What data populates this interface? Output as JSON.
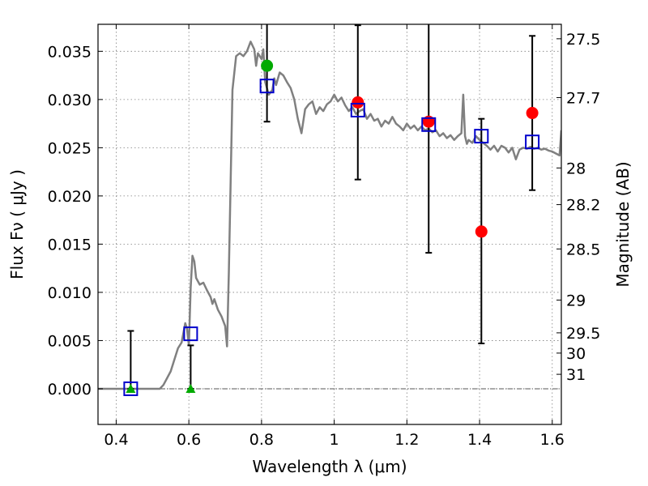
{
  "chart_data": {
    "type": "scatter",
    "xlabel": "Wavelength  λ (μm)",
    "ylabel": "Flux  Fν  ( μJy )",
    "y2label": "Magnitude (AB)",
    "xlim": [
      0.35,
      1.625
    ],
    "ylim": [
      -0.0037,
      0.0378
    ],
    "grid": true,
    "x_ticks": [
      0.4,
      0.6,
      0.8,
      1.0,
      1.2,
      1.4,
      1.6
    ],
    "x_tick_labels": [
      "0.4",
      "0.6",
      "0.8",
      "1",
      "1.2",
      "1.4",
      "1.6"
    ],
    "y_ticks": [
      0.0,
      0.005,
      0.01,
      0.015,
      0.02,
      0.025,
      0.03,
      0.035
    ],
    "y_tick_labels": [
      "0.000",
      "0.005",
      "0.010",
      "0.015",
      "0.020",
      "0.025",
      "0.030",
      "0.035"
    ],
    "y2_ticks": [
      {
        "label": "27.5",
        "flux": 0.0363
      },
      {
        "label": "27.7",
        "flux": 0.0302
      },
      {
        "label": "28",
        "flux": 0.0229
      },
      {
        "label": "28.2",
        "flux": 0.0191
      },
      {
        "label": "28.5",
        "flux": 0.0145
      },
      {
        "label": "29",
        "flux": 0.0092
      },
      {
        "label": "29.5",
        "flux": 0.0058
      },
      {
        "label": "30",
        "flux": 0.0037
      },
      {
        "label": "31",
        "flux": 0.0015
      }
    ],
    "colors": {
      "model": "#808080",
      "model_photometry": "#0000cc",
      "detection": "#ff0000",
      "green": "#00aa00",
      "errorbar": "#000000",
      "zero_line": "#555555",
      "grid": "#7f7f7f"
    },
    "model_sed": {
      "x": [
        0.35,
        0.44,
        0.48,
        0.52,
        0.53,
        0.55,
        0.57,
        0.58,
        0.59,
        0.595,
        0.6,
        0.605,
        0.61,
        0.615,
        0.62,
        0.63,
        0.64,
        0.65,
        0.66,
        0.665,
        0.67,
        0.68,
        0.69,
        0.7,
        0.705,
        0.71,
        0.72,
        0.73,
        0.74,
        0.75,
        0.76,
        0.77,
        0.78,
        0.785,
        0.79,
        0.8,
        0.805,
        0.81,
        0.82,
        0.83,
        0.835,
        0.84,
        0.85,
        0.86,
        0.87,
        0.88,
        0.89,
        0.9,
        0.91,
        0.92,
        0.93,
        0.94,
        0.95,
        0.96,
        0.97,
        0.98,
        0.99,
        1.0,
        1.01,
        1.02,
        1.03,
        1.04,
        1.05,
        1.06,
        1.07,
        1.08,
        1.09,
        1.1,
        1.11,
        1.12,
        1.13,
        1.14,
        1.15,
        1.16,
        1.17,
        1.18,
        1.19,
        1.2,
        1.21,
        1.22,
        1.23,
        1.24,
        1.25,
        1.26,
        1.27,
        1.28,
        1.29,
        1.3,
        1.31,
        1.32,
        1.33,
        1.34,
        1.35,
        1.355,
        1.36,
        1.365,
        1.37,
        1.38,
        1.39,
        1.4,
        1.41,
        1.42,
        1.43,
        1.44,
        1.45,
        1.46,
        1.47,
        1.48,
        1.49,
        1.5,
        1.51,
        1.52,
        1.53,
        1.54,
        1.55,
        1.56,
        1.57,
        1.58,
        1.59,
        1.6,
        1.61,
        1.62,
        1.625
      ],
      "y": [
        0.0,
        0.0,
        0.0,
        0.0,
        0.0004,
        0.0018,
        0.0042,
        0.0048,
        0.0068,
        0.0062,
        0.0045,
        0.0105,
        0.0138,
        0.0132,
        0.0115,
        0.0108,
        0.011,
        0.0102,
        0.0095,
        0.0088,
        0.0093,
        0.0082,
        0.0075,
        0.0065,
        0.0044,
        0.012,
        0.031,
        0.0345,
        0.0348,
        0.0345,
        0.035,
        0.036,
        0.0352,
        0.0335,
        0.0348,
        0.0342,
        0.0352,
        0.0318,
        0.0305,
        0.031,
        0.0322,
        0.0315,
        0.0328,
        0.0325,
        0.0318,
        0.0312,
        0.03,
        0.028,
        0.0265,
        0.029,
        0.0295,
        0.0298,
        0.0285,
        0.0292,
        0.0288,
        0.0295,
        0.0298,
        0.0305,
        0.0298,
        0.0302,
        0.0294,
        0.0288,
        0.0292,
        0.0285,
        0.0288,
        0.029,
        0.028,
        0.0285,
        0.0278,
        0.028,
        0.0272,
        0.0278,
        0.0275,
        0.0282,
        0.0275,
        0.0272,
        0.0268,
        0.0275,
        0.027,
        0.0273,
        0.0268,
        0.0272,
        0.0268,
        0.027,
        0.0266,
        0.0268,
        0.0262,
        0.0265,
        0.026,
        0.0263,
        0.0258,
        0.0262,
        0.0265,
        0.0305,
        0.0262,
        0.0254,
        0.0258,
        0.0255,
        0.0262,
        0.0258,
        0.0255,
        0.0252,
        0.0248,
        0.0252,
        0.0246,
        0.0252,
        0.025,
        0.0245,
        0.025,
        0.0238,
        0.0248,
        0.025,
        0.0249,
        0.0251,
        0.0249,
        0.025,
        0.0248,
        0.0249,
        0.0247,
        0.0246,
        0.0244,
        0.0242,
        0.0268
      ]
    },
    "model_photometry": {
      "x": [
        0.44,
        0.605,
        0.815,
        1.065,
        1.26,
        1.405,
        1.545
      ],
      "y": [
        0.0,
        0.0057,
        0.0314,
        0.0289,
        0.0274,
        0.0262,
        0.0256
      ]
    },
    "detections": {
      "x": [
        1.065,
        1.26,
        1.405,
        1.545
      ],
      "y": [
        0.0297,
        0.0277,
        0.0163,
        0.0286
      ]
    },
    "upper_limits": {
      "x": [
        0.44,
        0.605
      ],
      "y": [
        0.0,
        0.0
      ]
    },
    "green_point": {
      "x": 0.815,
      "y": 0.0335
    },
    "error_bars": [
      {
        "x": 0.44,
        "low": 0.0,
        "high": 0.006
      },
      {
        "x": 0.605,
        "low": 0.0,
        "high": 0.0045
      },
      {
        "x": 0.815,
        "low": 0.0277,
        "high": 0.04
      },
      {
        "x": 1.065,
        "low": 0.0217,
        "high": 0.0377
      },
      {
        "x": 1.26,
        "low": 0.0141,
        "high": 0.04
      },
      {
        "x": 1.405,
        "low": 0.0047,
        "high": 0.028
      },
      {
        "x": 1.545,
        "low": 0.0206,
        "high": 0.0366
      }
    ]
  }
}
